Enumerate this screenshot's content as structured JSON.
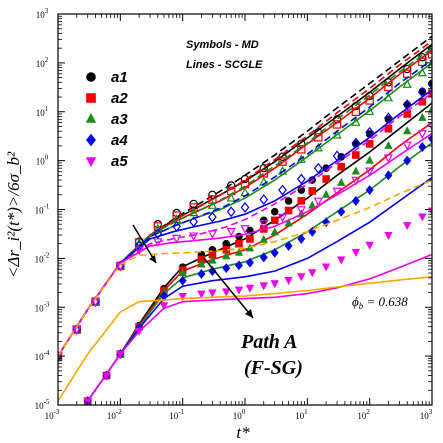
{
  "chart_data": {
    "type": "scatter",
    "log_x": true,
    "log_y": true,
    "xlim": [
      0.001,
      1000
    ],
    "ylim": [
      1e-05,
      1000
    ],
    "xlabel": "t*",
    "ylabel": "<Δr_i²(t*)>/6σ_b²",
    "x_ticks": [
      "-3",
      "-2",
      "-1",
      "0",
      "1",
      "2",
      "3"
    ],
    "y_ticks": [
      "-5",
      "-4",
      "-3",
      "-2",
      "-1",
      "0",
      "1",
      "2",
      "3"
    ],
    "tick_base": "10",
    "annotations": {
      "symbols": "Symbols - MD",
      "lines": "Lines - SCGLE",
      "path_line1": "Path A",
      "path_line2": "(F-SG)",
      "phi_prefix": "ϕ",
      "phi_sub": "b",
      "phi_value": " = 0.638"
    },
    "series": [
      {
        "name": "a1",
        "color": "#000000",
        "marker": "circle",
        "big_x": [
          0.001,
          0.002,
          0.004,
          0.01,
          0.02,
          0.04,
          0.08,
          0.15,
          0.3,
          0.6,
          1,
          2,
          4,
          8,
          15,
          30,
          60,
          100,
          200,
          400,
          700,
          1000
        ],
        "big_y": [
          0.0001,
          0.00035,
          0.0013,
          0.007,
          0.022,
          0.05,
          0.085,
          0.13,
          0.2,
          0.31,
          0.42,
          0.7,
          1.2,
          2.2,
          3.8,
          7,
          13,
          21,
          40,
          75,
          130,
          185
        ],
        "small_x": [
          0.003,
          0.006,
          0.01,
          0.02,
          0.05,
          0.1,
          0.2,
          0.3,
          0.5,
          0.8,
          1.2,
          2,
          3,
          5,
          8,
          12,
          20,
          35,
          60,
          100,
          200,
          400,
          700,
          1000
        ],
        "small_y": [
          1.2e-05,
          4e-05,
          0.00011,
          0.00042,
          0.0024,
          0.0066,
          0.012,
          0.015,
          0.02,
          0.028,
          0.037,
          0.06,
          0.09,
          0.15,
          0.25,
          0.4,
          0.7,
          1.2,
          2.2,
          3.5,
          7,
          14,
          26,
          38
        ],
        "line_big_x": [
          0.001,
          0.003,
          0.01,
          0.03,
          0.07,
          0.15,
          0.4,
          1,
          3,
          10,
          30,
          100,
          300,
          1000
        ],
        "line_big_y": [
          0.0001,
          0.0009,
          0.008,
          0.03,
          0.06,
          0.1,
          0.2,
          0.38,
          0.95,
          2.9,
          8,
          25,
          75,
          240
        ],
        "line_small_x": [
          0.003,
          0.01,
          0.02,
          0.05,
          0.1,
          0.3,
          1,
          3,
          10,
          30,
          100,
          300,
          1000
        ],
        "line_small_y": [
          1.2e-05,
          0.00011,
          0.00045,
          0.0025,
          0.0068,
          0.013,
          0.025,
          0.06,
          0.17,
          0.5,
          1.5,
          4.5,
          15
        ],
        "dash_x": [
          0.001,
          0.003,
          0.01,
          0.03,
          0.08,
          0.2,
          0.5,
          1,
          3,
          10,
          30,
          100,
          300,
          1000
        ],
        "dash_y": [
          0.0001,
          0.0009,
          0.008,
          0.03,
          0.07,
          0.14,
          0.28,
          0.5,
          1.3,
          4,
          12,
          38,
          110,
          350
        ]
      },
      {
        "name": "a2",
        "color": "#ee0000",
        "marker": "square",
        "big_x": [
          0.001,
          0.002,
          0.004,
          0.01,
          0.02,
          0.04,
          0.08,
          0.15,
          0.3,
          0.6,
          1,
          2,
          4,
          8,
          15,
          30,
          60,
          100,
          200,
          400,
          700,
          1000
        ],
        "big_y": [
          0.0001,
          0.00035,
          0.0013,
          0.007,
          0.021,
          0.045,
          0.075,
          0.11,
          0.16,
          0.24,
          0.33,
          0.55,
          0.95,
          1.7,
          3,
          5.5,
          10,
          17,
          32,
          60,
          105,
          150
        ],
        "small_x": [
          0.003,
          0.006,
          0.01,
          0.02,
          0.05,
          0.1,
          0.2,
          0.3,
          0.5,
          0.8,
          1.2,
          2,
          3,
          5,
          8,
          12,
          20,
          35,
          60,
          100,
          200,
          400,
          700,
          1000
        ],
        "small_y": [
          1.2e-05,
          4e-05,
          0.00011,
          0.0004,
          0.0022,
          0.0058,
          0.0095,
          0.012,
          0.015,
          0.02,
          0.025,
          0.04,
          0.06,
          0.095,
          0.15,
          0.24,
          0.42,
          0.75,
          1.3,
          2.2,
          4.5,
          9,
          16,
          24
        ],
        "line_big_x": [
          0.001,
          0.003,
          0.01,
          0.03,
          0.07,
          0.15,
          0.4,
          1,
          3,
          10,
          30,
          100,
          300,
          1000
        ],
        "line_big_y": [
          0.0001,
          0.0009,
          0.008,
          0.03,
          0.055,
          0.085,
          0.15,
          0.28,
          0.7,
          2.2,
          6,
          19,
          58,
          180
        ],
        "line_small_x": [
          0.003,
          0.01,
          0.02,
          0.05,
          0.1,
          0.3,
          1,
          3,
          10,
          30,
          100,
          300,
          1000
        ],
        "line_small_y": [
          1.2e-05,
          0.00011,
          0.00042,
          0.0022,
          0.0055,
          0.0095,
          0.015,
          0.03,
          0.08,
          0.22,
          0.65,
          2,
          6
        ],
        "dash_x": [
          0.001,
          0.003,
          0.01,
          0.03,
          0.08,
          0.2,
          0.5,
          1,
          3,
          10,
          30,
          100,
          300,
          1000
        ],
        "dash_y": [
          0.0001,
          0.0009,
          0.008,
          0.03,
          0.065,
          0.12,
          0.23,
          0.4,
          1.05,
          3.2,
          9.5,
          30,
          90,
          280
        ]
      },
      {
        "name": "a3",
        "color": "#1a8c1a",
        "marker": "triangle-up",
        "big_x": [
          0.001,
          0.002,
          0.004,
          0.01,
          0.02,
          0.04,
          0.08,
          0.15,
          0.3,
          0.6,
          1,
          2,
          4,
          8,
          15,
          30,
          60,
          100,
          200,
          400,
          700,
          1000
        ],
        "big_y": [
          0.0001,
          0.00035,
          0.0013,
          0.007,
          0.02,
          0.04,
          0.062,
          0.085,
          0.12,
          0.17,
          0.22,
          0.36,
          0.6,
          1.05,
          1.8,
          3.3,
          6,
          10,
          19,
          36,
          62,
          90
        ],
        "small_x": [
          0.003,
          0.006,
          0.01,
          0.02,
          0.05,
          0.1,
          0.2,
          0.3,
          0.5,
          0.8,
          1.2,
          2,
          3,
          5,
          8,
          12,
          20,
          35,
          60,
          100,
          200,
          400,
          700,
          1000
        ],
        "small_y": [
          1.2e-05,
          4e-05,
          0.00011,
          0.0004,
          0.002,
          0.005,
          0.0075,
          0.009,
          0.011,
          0.013,
          0.016,
          0.024,
          0.034,
          0.052,
          0.08,
          0.12,
          0.2,
          0.35,
          0.6,
          1,
          2,
          4,
          7.5,
          11
        ],
        "line_big_x": [
          0.001,
          0.003,
          0.01,
          0.03,
          0.07,
          0.15,
          0.4,
          1,
          3,
          10,
          30,
          100,
          300,
          1000
        ],
        "line_big_y": [
          0.0001,
          0.0009,
          0.008,
          0.028,
          0.045,
          0.065,
          0.1,
          0.17,
          0.4,
          1.2,
          3.4,
          10.5,
          32,
          100
        ],
        "line_small_x": [
          0.003,
          0.01,
          0.02,
          0.05,
          0.1,
          0.3,
          1,
          3,
          10,
          30,
          100,
          300,
          1000
        ],
        "line_small_y": [
          1.2e-05,
          0.00011,
          0.0004,
          0.0019,
          0.004,
          0.006,
          0.0085,
          0.015,
          0.035,
          0.09,
          0.25,
          0.75,
          2.3
        ],
        "dash_x": [
          0.001,
          0.003,
          0.01,
          0.03,
          0.08,
          0.2,
          0.5,
          1,
          3,
          10,
          30,
          100,
          300,
          1000
        ],
        "dash_y": [
          0.0001,
          0.0009,
          0.008,
          0.03,
          0.058,
          0.1,
          0.18,
          0.3,
          0.78,
          2.3,
          7,
          22,
          65,
          200
        ]
      },
      {
        "name": "a4",
        "color": "#0000ee",
        "marker": "diamond",
        "big_x": [
          0.001,
          0.002,
          0.004,
          0.01,
          0.02,
          0.04,
          0.08,
          0.15,
          0.3,
          0.6,
          1,
          2,
          4,
          8,
          15,
          30,
          60,
          100,
          200,
          400,
          700,
          1000
        ],
        "big_y": [
          0.0001,
          0.00035,
          0.0013,
          0.007,
          0.018,
          0.032,
          0.045,
          0.056,
          0.07,
          0.09,
          0.11,
          0.16,
          0.25,
          0.42,
          0.7,
          1.25,
          2.3,
          3.8,
          7.5,
          14,
          25,
          36
        ],
        "small_x": [
          0.003,
          0.006,
          0.01,
          0.02,
          0.05,
          0.1,
          0.2,
          0.3,
          0.5,
          0.8,
          1.2,
          2,
          3,
          5,
          8,
          12,
          20,
          35,
          60,
          100,
          200,
          400,
          700,
          1000
        ],
        "small_y": [
          1.2e-05,
          4e-05,
          0.00011,
          0.00038,
          0.0017,
          0.0035,
          0.0048,
          0.0055,
          0.0063,
          0.0072,
          0.0082,
          0.0105,
          0.013,
          0.018,
          0.025,
          0.035,
          0.055,
          0.09,
          0.15,
          0.25,
          0.5,
          1,
          1.9,
          2.8
        ],
        "line_big_x": [
          0.001,
          0.003,
          0.01,
          0.03,
          0.07,
          0.15,
          0.4,
          1,
          3,
          10,
          30,
          100,
          300,
          1000
        ],
        "line_big_y": [
          0.0001,
          0.0009,
          0.008,
          0.025,
          0.035,
          0.044,
          0.058,
          0.08,
          0.15,
          0.38,
          1,
          3,
          9,
          28
        ],
        "line_small_x": [
          0.003,
          0.01,
          0.02,
          0.05,
          0.1,
          0.3,
          1,
          3,
          10,
          30,
          100,
          300,
          1000
        ],
        "line_small_y": [
          1.2e-05,
          0.00011,
          0.00037,
          0.0015,
          0.0027,
          0.0035,
          0.0042,
          0.0055,
          0.01,
          0.022,
          0.055,
          0.15,
          0.45
        ],
        "dash_x": [
          0.001,
          0.003,
          0.01,
          0.03,
          0.08,
          0.2,
          0.5,
          1,
          3,
          10,
          30,
          100,
          300,
          1000
        ],
        "dash_y": [
          0.0001,
          0.0009,
          0.008,
          0.028,
          0.048,
          0.075,
          0.12,
          0.19,
          0.46,
          1.35,
          4,
          12.5,
          38,
          115
        ]
      },
      {
        "name": "a5",
        "color": "#ee00ee",
        "marker": "triangle-down",
        "big_x": [
          0.001,
          0.002,
          0.004,
          0.01,
          0.02,
          0.04,
          0.08,
          0.15,
          0.3,
          0.6,
          1,
          2,
          4,
          8,
          15,
          30,
          60,
          100,
          200,
          400,
          700,
          1000
        ],
        "big_y": [
          0.0001,
          0.00035,
          0.0013,
          0.007,
          0.015,
          0.022,
          0.026,
          0.029,
          0.032,
          0.036,
          0.041,
          0.052,
          0.07,
          0.1,
          0.15,
          0.24,
          0.4,
          0.62,
          1.15,
          2.1,
          3.6,
          5.2
        ],
        "small_x": [
          0.003,
          0.006,
          0.01,
          0.02,
          0.05,
          0.1,
          0.2,
          0.3,
          0.5,
          0.8,
          1.2,
          2,
          3,
          5,
          8,
          12,
          20,
          35,
          60,
          100,
          200,
          400,
          700,
          1000
        ],
        "small_y": [
          1.2e-05,
          4e-05,
          0.00011,
          0.00033,
          0.0011,
          0.0017,
          0.0019,
          0.002,
          0.0021,
          0.0023,
          0.0025,
          0.0028,
          0.0031,
          0.0036,
          0.0043,
          0.0052,
          0.0068,
          0.0095,
          0.0135,
          0.019,
          0.03,
          0.048,
          0.072,
          0.095
        ],
        "line_big_x": [
          0.001,
          0.003,
          0.01,
          0.03,
          0.07,
          0.15,
          0.4,
          1,
          3,
          10,
          30,
          100,
          300,
          1000
        ],
        "line_big_y": [
          0.0001,
          0.0009,
          0.008,
          0.018,
          0.021,
          0.023,
          0.026,
          0.031,
          0.045,
          0.09,
          0.2,
          0.5,
          1.3,
          3.6
        ],
        "line_small_x": [
          0.003,
          0.01,
          0.02,
          0.05,
          0.1,
          0.3,
          1,
          3,
          10,
          30,
          100,
          300,
          1000
        ],
        "line_small_y": [
          1.2e-05,
          0.00011,
          0.00032,
          0.00095,
          0.0013,
          0.0014,
          0.0015,
          0.0016,
          0.0019,
          0.0025,
          0.0038,
          0.0065,
          0.012
        ],
        "dash_x": [
          0.001,
          0.003,
          0.01,
          0.03,
          0.08,
          0.2,
          0.5,
          1,
          3,
          10,
          30,
          100,
          300,
          1000
        ],
        "dash_y": [
          0.0001,
          0.0009,
          0.008,
          0.02,
          0.026,
          0.032,
          0.044,
          0.062,
          0.13,
          0.33,
          0.9,
          2.6,
          8,
          24
        ]
      },
      {
        "name": "ϕb = 0.638",
        "color": "#ffa500",
        "marker": "none",
        "line_x": [
          0.001,
          0.003,
          0.01,
          0.02,
          0.05,
          0.1,
          0.3,
          1,
          3,
          10,
          30,
          100,
          300,
          1000
        ],
        "line_y": [
          1.2e-05,
          0.00011,
          0.0008,
          0.0013,
          0.0014,
          0.0015,
          0.0016,
          0.0017,
          0.0019,
          0.0022,
          0.0026,
          0.0031,
          0.0036,
          0.0042
        ],
        "dash_x": [
          0.001,
          0.003,
          0.01,
          0.02,
          0.05,
          0.1,
          0.3,
          1,
          3,
          10,
          30,
          100,
          300,
          1000
        ],
        "dash_y": [
          0.0001,
          0.0009,
          0.0075,
          0.0115,
          0.0125,
          0.013,
          0.014,
          0.016,
          0.022,
          0.035,
          0.06,
          0.11,
          0.21,
          0.4
        ]
      }
    ]
  }
}
